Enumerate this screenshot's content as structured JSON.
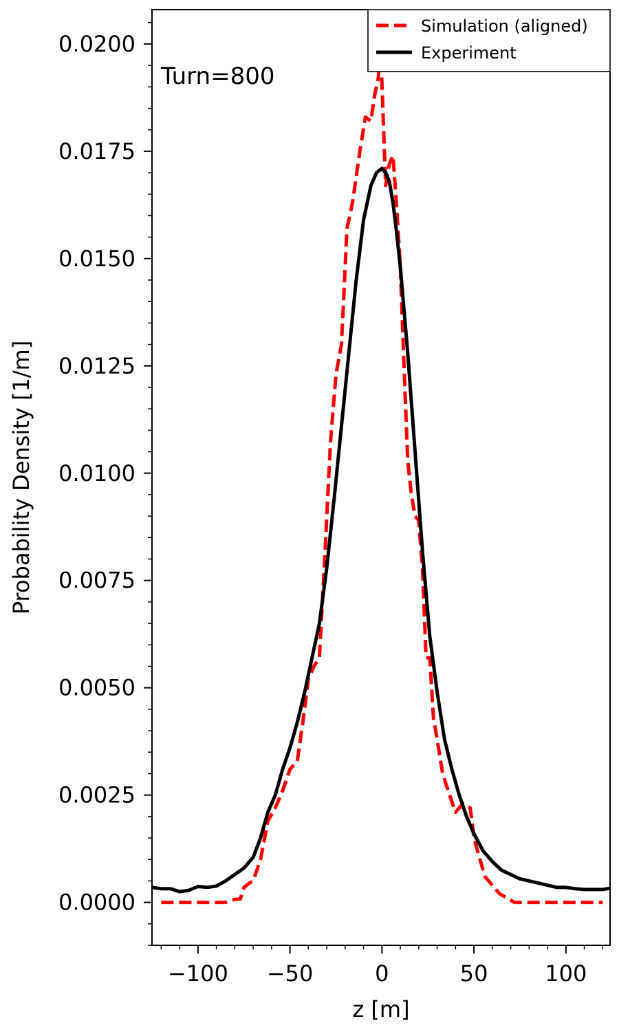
{
  "chart_data": {
    "type": "line",
    "xlabel": "z [m]",
    "ylabel": "Probability Density [1/m]",
    "xlim": [
      -125,
      124
    ],
    "ylim": [
      -0.001,
      0.0208
    ],
    "x_ticks": [
      -100,
      -50,
      0,
      50,
      100
    ],
    "x_tick_labels": [
      "−100",
      "−50",
      "0",
      "50",
      "100"
    ],
    "y_ticks": [
      0.0,
      0.0025,
      0.005,
      0.0075,
      0.01,
      0.0125,
      0.015,
      0.0175,
      0.02
    ],
    "y_tick_labels": [
      "0.0000",
      "0.0025",
      "0.0050",
      "0.0075",
      "0.0100",
      "0.0125",
      "0.0150",
      "0.0175",
      "0.0200"
    ],
    "annotation": "Turn=800",
    "grid": false,
    "legend_position": "top-right",
    "series": [
      {
        "name": "Simulation (aligned)",
        "color": "#ff0000",
        "style": "dashed",
        "x": [
          -120,
          -110,
          -100,
          -90,
          -85,
          -80,
          -77,
          -75,
          -72,
          -70,
          -66,
          -62,
          -58,
          -54,
          -50,
          -46,
          -43,
          -40,
          -37,
          -34,
          -31,
          -28,
          -25,
          -22,
          -19,
          -16,
          -12,
          -9,
          -6,
          -4,
          -2,
          -1,
          0,
          2,
          4,
          6,
          8,
          10,
          12,
          14,
          16,
          18,
          20,
          22,
          24,
          26,
          28,
          30,
          33,
          36,
          40,
          44,
          48,
          50,
          52,
          56,
          60,
          64,
          68,
          72,
          76,
          80,
          90,
          100,
          110,
          120
        ],
        "values": [
          0.0,
          0.0,
          0.0,
          0.0,
          0.0,
          7e-05,
          8e-05,
          0.00035,
          0.00045,
          0.0005,
          0.001,
          0.0019,
          0.0022,
          0.0026,
          0.0031,
          0.0033,
          0.0042,
          0.0052,
          0.0055,
          0.0057,
          0.0081,
          0.0107,
          0.0123,
          0.013,
          0.0157,
          0.0163,
          0.0175,
          0.0183,
          0.0182,
          0.0188,
          0.0192,
          0.0198,
          0.0191,
          0.0167,
          0.0172,
          0.0174,
          0.0162,
          0.0148,
          0.0125,
          0.0103,
          0.0095,
          0.009,
          0.0089,
          0.0078,
          0.0057,
          0.0057,
          0.0043,
          0.0038,
          0.003,
          0.0026,
          0.0021,
          0.0023,
          0.0022,
          0.0015,
          0.0012,
          0.0006,
          0.0004,
          0.0002,
          0.0001,
          0.0,
          0.0,
          0.0,
          0.0,
          0.0,
          0.0,
          0.0
        ]
      },
      {
        "name": "Experiment",
        "color": "#000000",
        "style": "solid",
        "x": [
          -125,
          -120,
          -115,
          -110,
          -105,
          -100,
          -95,
          -90,
          -85,
          -80,
          -75,
          -70,
          -66,
          -62,
          -58,
          -54,
          -50,
          -46,
          -42,
          -38,
          -34,
          -30,
          -26,
          -22,
          -18,
          -14,
          -10,
          -6,
          -3,
          0,
          2,
          4,
          6,
          8,
          10,
          14,
          18,
          22,
          26,
          30,
          34,
          38,
          42,
          46,
          50,
          55,
          60,
          65,
          70,
          75,
          80,
          85,
          90,
          95,
          100,
          105,
          110,
          115,
          120,
          124
        ],
        "values": [
          0.00035,
          0.00032,
          0.00032,
          0.00025,
          0.00028,
          0.00037,
          0.00035,
          0.00038,
          0.0005,
          0.00065,
          0.0008,
          0.00105,
          0.0015,
          0.0021,
          0.0025,
          0.0031,
          0.0036,
          0.0042,
          0.0049,
          0.0057,
          0.0065,
          0.0078,
          0.0094,
          0.0111,
          0.0128,
          0.0145,
          0.0159,
          0.0167,
          0.017,
          0.0171,
          0.017,
          0.0168,
          0.0163,
          0.0156,
          0.0148,
          0.0128,
          0.0105,
          0.0082,
          0.0062,
          0.0049,
          0.0038,
          0.0031,
          0.0025,
          0.002,
          0.0016,
          0.0012,
          0.00095,
          0.00075,
          0.00065,
          0.00055,
          0.0005,
          0.00045,
          0.0004,
          0.00035,
          0.00035,
          0.00032,
          0.0003,
          0.0003,
          0.0003,
          0.00033
        ]
      }
    ]
  }
}
